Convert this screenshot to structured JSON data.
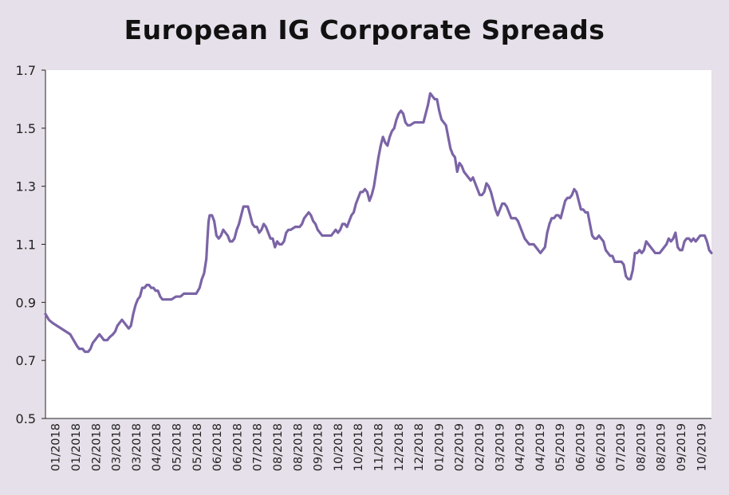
{
  "chart_data": {
    "type": "line",
    "title": "European IG Corporate Spreads",
    "xlabel": "",
    "ylabel": "",
    "ylim": [
      0.5,
      1.7
    ],
    "y_ticks": [
      "0.5",
      "0.7",
      "0.9",
      "1.1",
      "1.3",
      "1.5",
      "1.7"
    ],
    "x_tick_labels": [
      "01/2018",
      "01/2018",
      "02/2018",
      "03/2018",
      "03/2018",
      "04/2018",
      "05/2018",
      "05/2018",
      "06/2018",
      "06/2018",
      "07/2018",
      "08/2018",
      "08/2018",
      "09/2018",
      "10/2018",
      "10/2018",
      "11/2018",
      "12/2018",
      "12/2018",
      "01/2019",
      "02/2019",
      "02/2019",
      "03/2019",
      "04/2019",
      "04/2019",
      "05/2019",
      "06/2019",
      "06/2019",
      "07/2019",
      "08/2019",
      "08/2019",
      "09/2019",
      "10/2019"
    ],
    "grid": false,
    "legend": "none",
    "line_color": "#7b64a6",
    "series": [
      {
        "values": [
          [
            0,
            0.86
          ],
          [
            3,
            0.84
          ],
          [
            6,
            0.83
          ],
          [
            10,
            0.82
          ],
          [
            14,
            0.81
          ],
          [
            18,
            0.8
          ],
          [
            22,
            0.79
          ],
          [
            25,
            0.77
          ],
          [
            28,
            0.75
          ],
          [
            30,
            0.74
          ],
          [
            33,
            0.74
          ],
          [
            35,
            0.73
          ],
          [
            38,
            0.73
          ],
          [
            40,
            0.74
          ],
          [
            42,
            0.76
          ],
          [
            44,
            0.77
          ],
          [
            46,
            0.78
          ],
          [
            48,
            0.79
          ],
          [
            50,
            0.78
          ],
          [
            52,
            0.77
          ],
          [
            55,
            0.77
          ],
          [
            57,
            0.78
          ],
          [
            60,
            0.79
          ],
          [
            62,
            0.8
          ],
          [
            64,
            0.82
          ],
          [
            66,
            0.83
          ],
          [
            68,
            0.84
          ],
          [
            70,
            0.83
          ],
          [
            72,
            0.82
          ],
          [
            74,
            0.81
          ],
          [
            76,
            0.82
          ],
          [
            78,
            0.86
          ],
          [
            80,
            0.89
          ],
          [
            82,
            0.91
          ],
          [
            84,
            0.92
          ],
          [
            86,
            0.95
          ],
          [
            88,
            0.95
          ],
          [
            90,
            0.96
          ],
          [
            92,
            0.96
          ],
          [
            94,
            0.95
          ],
          [
            96,
            0.95
          ],
          [
            98,
            0.94
          ],
          [
            100,
            0.94
          ],
          [
            102,
            0.92
          ],
          [
            104,
            0.91
          ],
          [
            108,
            0.91
          ],
          [
            112,
            0.91
          ],
          [
            116,
            0.92
          ],
          [
            120,
            0.92
          ],
          [
            123,
            0.93
          ],
          [
            126,
            0.93
          ],
          [
            130,
            0.93
          ],
          [
            134,
            0.93
          ],
          [
            137,
            0.95
          ],
          [
            139,
            0.98
          ],
          [
            141,
            1.0
          ],
          [
            143,
            1.05
          ],
          [
            144,
            1.12
          ],
          [
            145,
            1.18
          ],
          [
            146,
            1.2
          ],
          [
            148,
            1.2
          ],
          [
            150,
            1.18
          ],
          [
            152,
            1.13
          ],
          [
            154,
            1.12
          ],
          [
            156,
            1.13
          ],
          [
            158,
            1.15
          ],
          [
            160,
            1.14
          ],
          [
            162,
            1.13
          ],
          [
            164,
            1.11
          ],
          [
            166,
            1.11
          ],
          [
            168,
            1.12
          ],
          [
            170,
            1.15
          ],
          [
            172,
            1.17
          ],
          [
            174,
            1.2
          ],
          [
            176,
            1.23
          ],
          [
            178,
            1.23
          ],
          [
            180,
            1.23
          ],
          [
            182,
            1.2
          ],
          [
            184,
            1.17
          ],
          [
            186,
            1.16
          ],
          [
            188,
            1.16
          ],
          [
            190,
            1.14
          ],
          [
            192,
            1.15
          ],
          [
            194,
            1.17
          ],
          [
            196,
            1.16
          ],
          [
            198,
            1.14
          ],
          [
            200,
            1.12
          ],
          [
            202,
            1.12
          ],
          [
            204,
            1.09
          ],
          [
            206,
            1.11
          ],
          [
            208,
            1.1
          ],
          [
            210,
            1.1
          ],
          [
            212,
            1.11
          ],
          [
            214,
            1.14
          ],
          [
            216,
            1.15
          ],
          [
            218,
            1.15
          ],
          [
            222,
            1.16
          ],
          [
            226,
            1.16
          ],
          [
            228,
            1.17
          ],
          [
            230,
            1.19
          ],
          [
            232,
            1.2
          ],
          [
            234,
            1.21
          ],
          [
            236,
            1.2
          ],
          [
            238,
            1.18
          ],
          [
            240,
            1.17
          ],
          [
            242,
            1.15
          ],
          [
            244,
            1.14
          ],
          [
            246,
            1.13
          ],
          [
            250,
            1.13
          ],
          [
            254,
            1.13
          ],
          [
            256,
            1.14
          ],
          [
            258,
            1.15
          ],
          [
            260,
            1.14
          ],
          [
            262,
            1.15
          ],
          [
            264,
            1.17
          ],
          [
            266,
            1.17
          ],
          [
            268,
            1.16
          ],
          [
            270,
            1.18
          ],
          [
            272,
            1.2
          ],
          [
            274,
            1.21
          ],
          [
            276,
            1.24
          ],
          [
            278,
            1.26
          ],
          [
            280,
            1.28
          ],
          [
            282,
            1.28
          ],
          [
            284,
            1.29
          ],
          [
            286,
            1.28
          ],
          [
            288,
            1.25
          ],
          [
            290,
            1.27
          ],
          [
            292,
            1.3
          ],
          [
            294,
            1.35
          ],
          [
            296,
            1.4
          ],
          [
            298,
            1.44
          ],
          [
            300,
            1.47
          ],
          [
            302,
            1.45
          ],
          [
            304,
            1.44
          ],
          [
            306,
            1.47
          ],
          [
            308,
            1.49
          ],
          [
            310,
            1.5
          ],
          [
            312,
            1.53
          ],
          [
            314,
            1.55
          ],
          [
            316,
            1.56
          ],
          [
            318,
            1.55
          ],
          [
            320,
            1.52
          ],
          [
            322,
            1.51
          ],
          [
            324,
            1.51
          ],
          [
            328,
            1.52
          ],
          [
            332,
            1.52
          ],
          [
            336,
            1.52
          ],
          [
            338,
            1.55
          ],
          [
            340,
            1.58
          ],
          [
            342,
            1.62
          ],
          [
            344,
            1.61
          ],
          [
            346,
            1.6
          ],
          [
            348,
            1.6
          ],
          [
            350,
            1.56
          ],
          [
            352,
            1.53
          ],
          [
            354,
            1.52
          ],
          [
            356,
            1.51
          ],
          [
            358,
            1.47
          ],
          [
            360,
            1.43
          ],
          [
            362,
            1.41
          ],
          [
            364,
            1.4
          ],
          [
            366,
            1.35
          ],
          [
            368,
            1.38
          ],
          [
            370,
            1.37
          ],
          [
            372,
            1.35
          ],
          [
            374,
            1.34
          ],
          [
            376,
            1.33
          ],
          [
            378,
            1.32
          ],
          [
            380,
            1.33
          ],
          [
            382,
            1.31
          ],
          [
            384,
            1.29
          ],
          [
            386,
            1.27
          ],
          [
            388,
            1.27
          ],
          [
            390,
            1.28
          ],
          [
            392,
            1.31
          ],
          [
            394,
            1.3
          ],
          [
            396,
            1.28
          ],
          [
            398,
            1.25
          ],
          [
            400,
            1.22
          ],
          [
            402,
            1.2
          ],
          [
            404,
            1.22
          ],
          [
            406,
            1.24
          ],
          [
            408,
            1.24
          ],
          [
            410,
            1.23
          ],
          [
            412,
            1.21
          ],
          [
            414,
            1.19
          ],
          [
            416,
            1.19
          ],
          [
            418,
            1.19
          ],
          [
            420,
            1.18
          ],
          [
            422,
            1.16
          ],
          [
            424,
            1.14
          ],
          [
            426,
            1.12
          ],
          [
            428,
            1.11
          ],
          [
            430,
            1.1
          ],
          [
            432,
            1.1
          ],
          [
            434,
            1.1
          ],
          [
            436,
            1.09
          ],
          [
            438,
            1.08
          ],
          [
            440,
            1.07
          ],
          [
            442,
            1.08
          ],
          [
            444,
            1.09
          ],
          [
            446,
            1.14
          ],
          [
            448,
            1.17
          ],
          [
            450,
            1.19
          ],
          [
            452,
            1.19
          ],
          [
            454,
            1.2
          ],
          [
            456,
            1.2
          ],
          [
            458,
            1.19
          ],
          [
            460,
            1.22
          ],
          [
            462,
            1.25
          ],
          [
            464,
            1.26
          ],
          [
            466,
            1.26
          ],
          [
            468,
            1.27
          ],
          [
            470,
            1.29
          ],
          [
            472,
            1.28
          ],
          [
            474,
            1.25
          ],
          [
            476,
            1.22
          ],
          [
            478,
            1.22
          ],
          [
            480,
            1.21
          ],
          [
            482,
            1.21
          ],
          [
            484,
            1.17
          ],
          [
            486,
            1.13
          ],
          [
            488,
            1.12
          ],
          [
            490,
            1.12
          ],
          [
            492,
            1.13
          ],
          [
            494,
            1.12
          ],
          [
            496,
            1.11
          ],
          [
            498,
            1.08
          ],
          [
            500,
            1.07
          ],
          [
            502,
            1.06
          ],
          [
            504,
            1.06
          ],
          [
            506,
            1.04
          ],
          [
            508,
            1.04
          ],
          [
            510,
            1.04
          ],
          [
            512,
            1.04
          ],
          [
            514,
            1.03
          ],
          [
            516,
            0.99
          ],
          [
            518,
            0.98
          ],
          [
            520,
            0.98
          ],
          [
            522,
            1.01
          ],
          [
            524,
            1.07
          ],
          [
            526,
            1.07
          ],
          [
            528,
            1.08
          ],
          [
            530,
            1.07
          ],
          [
            532,
            1.08
          ],
          [
            534,
            1.11
          ],
          [
            536,
            1.1
          ],
          [
            538,
            1.09
          ],
          [
            540,
            1.08
          ],
          [
            542,
            1.07
          ],
          [
            546,
            1.07
          ],
          [
            548,
            1.08
          ],
          [
            550,
            1.09
          ],
          [
            552,
            1.1
          ],
          [
            554,
            1.12
          ],
          [
            556,
            1.11
          ],
          [
            558,
            1.12
          ],
          [
            560,
            1.14
          ],
          [
            562,
            1.09
          ],
          [
            564,
            1.08
          ],
          [
            566,
            1.08
          ],
          [
            568,
            1.11
          ],
          [
            570,
            1.12
          ],
          [
            572,
            1.12
          ],
          [
            574,
            1.11
          ],
          [
            576,
            1.12
          ],
          [
            578,
            1.11
          ],
          [
            580,
            1.12
          ],
          [
            582,
            1.13
          ],
          [
            584,
            1.13
          ],
          [
            586,
            1.13
          ],
          [
            588,
            1.11
          ],
          [
            590,
            1.08
          ],
          [
            592,
            1.07
          ]
        ]
      }
    ]
  }
}
